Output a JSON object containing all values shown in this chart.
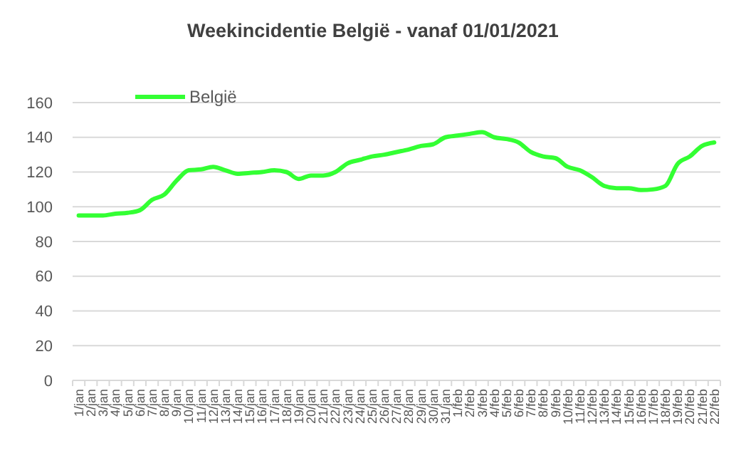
{
  "chart_data": {
    "type": "line",
    "title": "Weekincidentie  België - vanaf 01/01/2021",
    "categories": [
      "1/jan",
      "2/jan",
      "3/jan",
      "4/jan",
      "5/jan",
      "6/jan",
      "7/jan",
      "8/jan",
      "9/jan",
      "10/jan",
      "11/jan",
      "12/jan",
      "13/jan",
      "14/jan",
      "15/jan",
      "16/jan",
      "17/jan",
      "18/jan",
      "19/jan",
      "20/jan",
      "21/jan",
      "22/jan",
      "23/jan",
      "24/jan",
      "25/jan",
      "26/jan",
      "27/jan",
      "28/jan",
      "29/jan",
      "30/jan",
      "31/jan",
      "1/feb",
      "2/feb",
      "3/feb",
      "4/feb",
      "5/feb",
      "6/feb",
      "7/feb",
      "8/feb",
      "9/feb",
      "10/feb",
      "11/feb",
      "12/feb",
      "13/feb",
      "14/feb",
      "15/feb",
      "16/feb",
      "17/feb",
      "18/feb",
      "19/feb",
      "20/feb",
      "21/feb",
      "22/feb"
    ],
    "series": [
      {
        "name": "België",
        "color": "#33ff33",
        "values": [
          95,
          95,
          95,
          96,
          96.5,
          98,
          104,
          107,
          115,
          121,
          121.5,
          123,
          121,
          119,
          119.5,
          120,
          121,
          120,
          116,
          118,
          118,
          120,
          125,
          127,
          129,
          130,
          131.5,
          133,
          135,
          136,
          140,
          141,
          142,
          143,
          140,
          139,
          137,
          131.5,
          129,
          128,
          123,
          121,
          117,
          112,
          110.7,
          110.7,
          109.6,
          110,
          112,
          124.7,
          129,
          135,
          137
        ]
      }
    ],
    "ylim": [
      0,
      160
    ],
    "yticks": [
      0,
      20,
      40,
      60,
      80,
      100,
      120,
      140,
      160
    ],
    "grid": "y",
    "legend": "top left",
    "marker": "none",
    "line_style": "solid"
  }
}
